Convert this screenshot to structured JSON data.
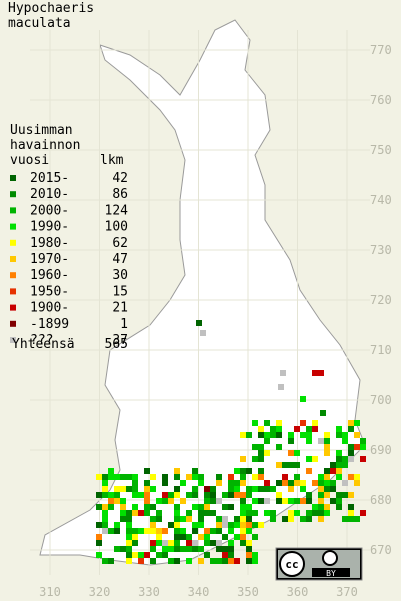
{
  "title": [
    "Hypochaeris",
    "maculata"
  ],
  "legend": {
    "header": [
      "Uusimman",
      "havainnon",
      "vuosi"
    ],
    "count_header": "lkm",
    "items": [
      {
        "label": "2015-",
        "count": 42,
        "color": "#006400"
      },
      {
        "label": "2010-",
        "count": 86,
        "color": "#008a00"
      },
      {
        "label": "2000-",
        "count": 124,
        "color": "#00b400"
      },
      {
        "label": "1990-",
        "count": 100,
        "color": "#00e000"
      },
      {
        "label": "1980-",
        "count": 62,
        "color": "#ffff00"
      },
      {
        "label": "1970-",
        "count": 47,
        "color": "#ffc800"
      },
      {
        "label": "1960-",
        "count": 30,
        "color": "#ff8000"
      },
      {
        "label": "1950-",
        "count": 15,
        "color": "#e63200"
      },
      {
        "label": "1900-",
        "count": 21,
        "color": "#c80000"
      },
      {
        "label": "-1899",
        "count": 1,
        "color": "#800000"
      },
      {
        "label": "???",
        "count": 37,
        "color": "#c0c0c0"
      }
    ],
    "total_label": "Yhteensä",
    "total": 565
  },
  "x_grid_labels": [
    310,
    320,
    330,
    340,
    350,
    360,
    370
  ],
  "y_grid_labels": [
    770,
    760,
    750,
    740,
    730,
    720,
    710,
    700,
    690,
    680,
    670
  ],
  "license_badge": "BY"
}
